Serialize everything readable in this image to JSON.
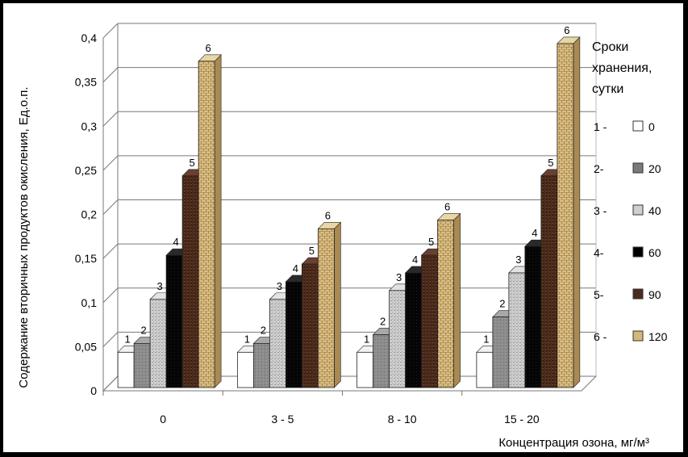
{
  "chart_data": {
    "type": "bar",
    "style": "3d-clustered-column",
    "title": "",
    "xlabel": "Концентрация озона, мг/м³",
    "ylabel": "Содержание вторичных продуктов окисления, Ед.о.п.",
    "ylim": [
      0,
      0.4
    ],
    "yticks": [
      "0",
      "0,05",
      "0,1",
      "0,15",
      "0,2",
      "0,25",
      "0,3",
      "0,35",
      "0,4"
    ],
    "grid": true,
    "legend_position": "right",
    "legend_title": "Сроки хранения, сутки",
    "legend_title_lines": [
      "Сроки",
      "хранения,",
      "сутки"
    ],
    "categories": [
      "0",
      "3 - 5",
      "8 - 10",
      "15 - 20"
    ],
    "series": [
      {
        "name": "0",
        "marker": "1 -",
        "bar_label": "1",
        "color": "#ffffff",
        "values": [
          0.04,
          0.04,
          0.04,
          0.04
        ]
      },
      {
        "name": "20",
        "marker": "2-",
        "bar_label": "2",
        "color": "#8a8a8a",
        "values": [
          0.05,
          0.05,
          0.06,
          0.08
        ]
      },
      {
        "name": "40",
        "marker": "3 -",
        "bar_label": "3",
        "color": "#c8c8c8",
        "values": [
          0.1,
          0.1,
          0.11,
          0.13
        ]
      },
      {
        "name": "60",
        "marker": "4-",
        "bar_label": "4",
        "color": "#000000",
        "values": [
          0.15,
          0.12,
          0.13,
          0.16
        ]
      },
      {
        "name": "90",
        "marker": "5-",
        "bar_label": "5",
        "color": "#4a2a1a",
        "values": [
          0.24,
          0.14,
          0.15,
          0.24
        ]
      },
      {
        "name": "120",
        "marker": "6 -",
        "bar_label": "6",
        "color": "#d4b87a",
        "values": [
          0.37,
          0.18,
          0.19,
          0.39
        ]
      }
    ]
  }
}
